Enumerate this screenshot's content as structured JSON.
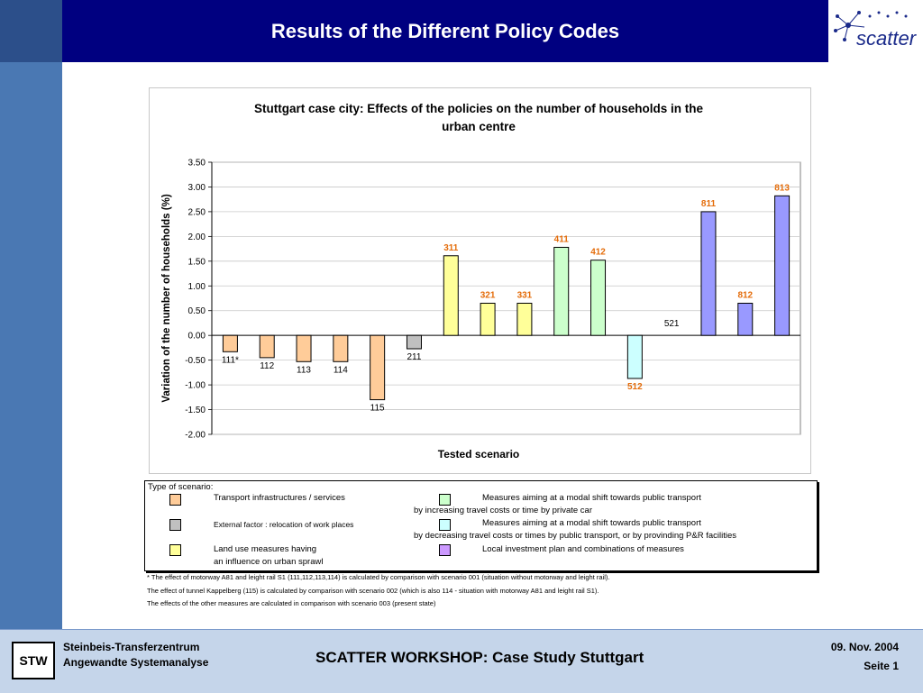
{
  "header": {
    "title": "Results of the Different Policy Codes"
  },
  "logo": {
    "text": "scatter"
  },
  "chart_data": {
    "type": "bar",
    "title": "Stuttgart case city: Effects of the policies on the number of households in the urban centre",
    "title_lines": [
      "Stuttgart case city: Effects of the policies on the number of households in the",
      "urban centre"
    ],
    "xlabel": "Tested scenario",
    "ylabel": "Variation of the number of households (%)",
    "ylim": [
      -2.0,
      3.5
    ],
    "yticks": [
      "3.50",
      "3.00",
      "2.50",
      "2.00",
      "1.50",
      "1.00",
      "0.50",
      "0.00",
      "-0.50",
      "-1.00",
      "-1.50",
      "-2.00"
    ],
    "grid": true,
    "bars": [
      {
        "label": "111*",
        "value": -0.33,
        "color": "#ffcc99",
        "label_color": "#000000",
        "label_bold": false
      },
      {
        "label": "112",
        "value": -0.45,
        "color": "#ffcc99",
        "label_color": "#000000",
        "label_bold": false
      },
      {
        "label": "113",
        "value": -0.53,
        "color": "#ffcc99",
        "label_color": "#000000",
        "label_bold": false
      },
      {
        "label": "114",
        "value": -0.53,
        "color": "#ffcc99",
        "label_color": "#000000",
        "label_bold": false
      },
      {
        "label": "115",
        "value": -1.3,
        "color": "#ffcc99",
        "label_color": "#000000",
        "label_bold": false
      },
      {
        "label": "211",
        "value": -0.27,
        "color": "#c0c0c0",
        "label_color": "#000000",
        "label_bold": false
      },
      {
        "label": "311",
        "value": 1.61,
        "color": "#ffff99",
        "label_color": "#e46c0a",
        "label_bold": true
      },
      {
        "label": "321",
        "value": 0.65,
        "color": "#ffff99",
        "label_color": "#e46c0a",
        "label_bold": true
      },
      {
        "label": "331",
        "value": 0.65,
        "color": "#ffff99",
        "label_color": "#e46c0a",
        "label_bold": true
      },
      {
        "label": "411",
        "value": 1.78,
        "color": "#ccffcc",
        "label_color": "#e46c0a",
        "label_bold": true
      },
      {
        "label": "412",
        "value": 1.52,
        "color": "#ccffcc",
        "label_color": "#e46c0a",
        "label_bold": true
      },
      {
        "label": "512",
        "value": -0.87,
        "color": "#ccffff",
        "label_color": "#e46c0a",
        "label_bold": true
      },
      {
        "label": "521",
        "value": 0.0,
        "color": "#ccffff",
        "label_color": "#000000",
        "label_bold": false
      },
      {
        "label": "811",
        "value": 2.5,
        "color": "#9999ff",
        "label_color": "#e46c0a",
        "label_bold": true
      },
      {
        "label": "812",
        "value": 0.65,
        "color": "#9999ff",
        "label_color": "#e46c0a",
        "label_bold": true
      },
      {
        "label": "813",
        "value": 2.82,
        "color": "#9999ff",
        "label_color": "#e46c0a",
        "label_bold": true
      }
    ]
  },
  "legend": {
    "heading": "Type of scenario:",
    "items": [
      {
        "color": "#ffcc99",
        "lines": [
          "Transport infrastructures / services"
        ]
      },
      {
        "color": "#c0c0c0",
        "lines": [
          "External factor : relocation of work places"
        ]
      },
      {
        "color": "#ffff99",
        "lines": [
          "Land use measures having",
          "an influence on urban sprawl"
        ]
      },
      {
        "color": "#ccffcc",
        "lines": [
          "Measures aiming at a modal shift towards public transport",
          "by increasing travel costs or time by private car"
        ]
      },
      {
        "color": "#ccffff",
        "lines": [
          "Measures aiming at a modal shift towards public transport",
          "by decreasing travel costs or times by public transport, or by provinding P&R facilities"
        ]
      },
      {
        "color": "#cc99ff",
        "lines": [
          "Local investment plan and combinations of measures"
        ]
      }
    ]
  },
  "notes": [
    "* The effect of motorway A81 and leight rail S1 (111,112,113,114) is calculated by comparison with scenario 001 (situation without motorway and leight rail).",
    "The effect of tunnel Kappelberg (115) is calculated by comparison with scenario 002 (which is also 114 - situation with motorway A81 and leight rail S1).",
    "The effects of the other measures are calculated in comparison with scenario 003 (present state)"
  ],
  "footer": {
    "logo_text": "STW",
    "org_line1": "Steinbeis-Transferzentrum",
    "org_line2": "Angewandte Systemanalyse",
    "workshop": "SCATTER WORKSHOP: Case Study Stuttgart",
    "date": "09. Nov.  2004",
    "page": "Seite 1"
  }
}
